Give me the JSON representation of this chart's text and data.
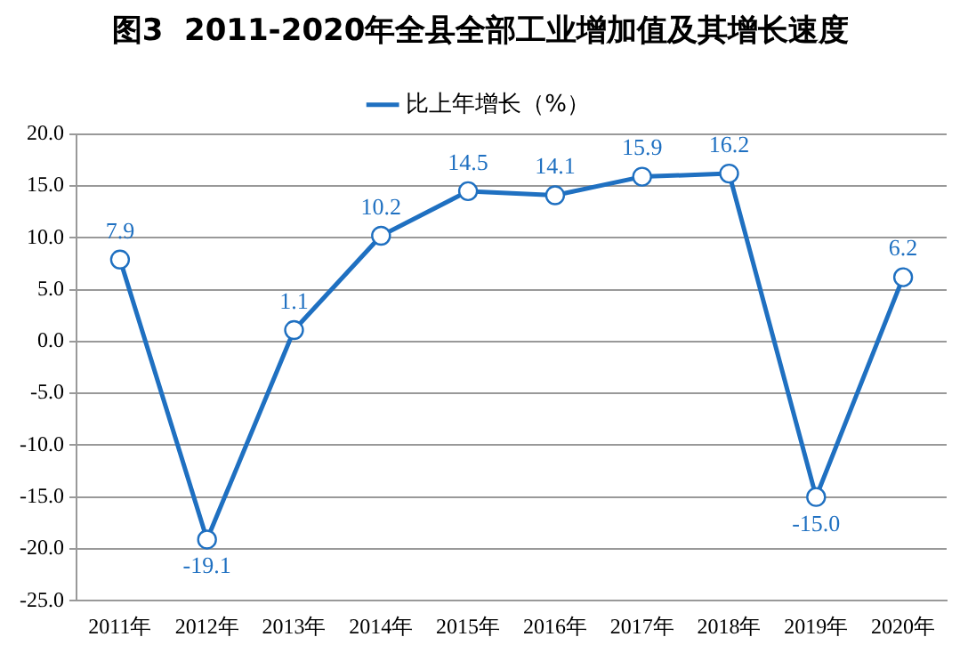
{
  "chart_data": {
    "type": "line",
    "title": "图3  2011-2020年全县全部工业增加值及其增长速度",
    "categories": [
      "2011年",
      "2012年",
      "2013年",
      "2014年",
      "2015年",
      "2016年",
      "2017年",
      "2018年",
      "2019年",
      "2020年"
    ],
    "series": [
      {
        "name": "比上年增长（%）",
        "color": "#1f70c1",
        "values": [
          7.9,
          -19.1,
          1.1,
          10.2,
          14.5,
          14.1,
          15.9,
          16.2,
          -15.0,
          6.2
        ],
        "value_labels": [
          "7.9",
          "-19.1",
          "1.1",
          "10.2",
          "14.5",
          "14.1",
          "15.9",
          "16.2",
          "-15.0",
          "6.2"
        ]
      }
    ],
    "ylim": [
      -25,
      20
    ],
    "yticks": [
      {
        "value": -25,
        "label": "-25.0"
      },
      {
        "value": -20,
        "label": "-20.0"
      },
      {
        "value": -15,
        "label": "-15.0"
      },
      {
        "value": -10,
        "label": "-10.0"
      },
      {
        "value": -5,
        "label": "-5.0"
      },
      {
        "value": 0,
        "label": "0.0"
      },
      {
        "value": 5,
        "label": "5.0"
      },
      {
        "value": 10,
        "label": "10.0"
      },
      {
        "value": 15,
        "label": "15.0"
      },
      {
        "value": 20,
        "label": "20.0"
      }
    ],
    "grid": "y",
    "legend": "top",
    "marker": "circle",
    "line_style": "solid"
  }
}
